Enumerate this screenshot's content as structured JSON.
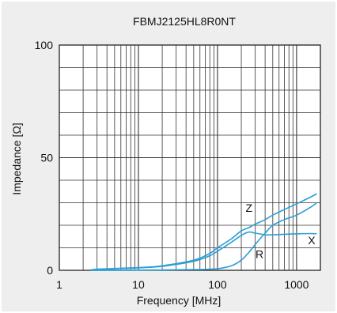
{
  "chart_data": {
    "type": "line",
    "title": "FBMJ2125HL8R0NT",
    "xlabel": "Frequency [MHz]",
    "ylabel": "Impedance [Ω]",
    "xscale": "log",
    "xlim": [
      1,
      2000
    ],
    "ylim": [
      0,
      100
    ],
    "x_tick_labels": [
      "1",
      "10",
      "100",
      "1000"
    ],
    "y_tick_labels": [
      "0",
      "50",
      "100"
    ],
    "grid": true,
    "line_color": "#2a9fd6",
    "series": [
      {
        "name": "Z",
        "x": [
          2.5,
          3,
          5,
          10,
          20,
          50,
          80,
          100,
          150,
          200,
          250,
          300,
          400,
          500,
          700,
          1000,
          1500,
          1800
        ],
        "y": [
          0.2,
          0.5,
          0.8,
          1.2,
          2,
          4.5,
          7.5,
          10,
          14,
          17.5,
          19,
          20.5,
          22.5,
          24.5,
          27,
          29.5,
          32.5,
          34
        ]
      },
      {
        "name": "R",
        "x": [
          2.5,
          10,
          50,
          100,
          150,
          200,
          250,
          300,
          400,
          500,
          700,
          1000,
          1500,
          1800
        ],
        "y": [
          0,
          0.1,
          0.3,
          0.7,
          2,
          4.5,
          8,
          11.5,
          16.5,
          20,
          22.5,
          24.5,
          28,
          30
        ]
      },
      {
        "name": "X",
        "x": [
          2.5,
          5,
          10,
          20,
          50,
          80,
          100,
          150,
          200,
          250,
          300,
          400,
          500,
          700,
          1000,
          1500,
          1800
        ],
        "y": [
          0.2,
          0.7,
          1.1,
          1.8,
          4,
          6.5,
          8.5,
          12.5,
          15.5,
          17,
          16.5,
          15.8,
          15.8,
          16,
          16.2,
          16.3,
          16.2
        ]
      }
    ]
  }
}
